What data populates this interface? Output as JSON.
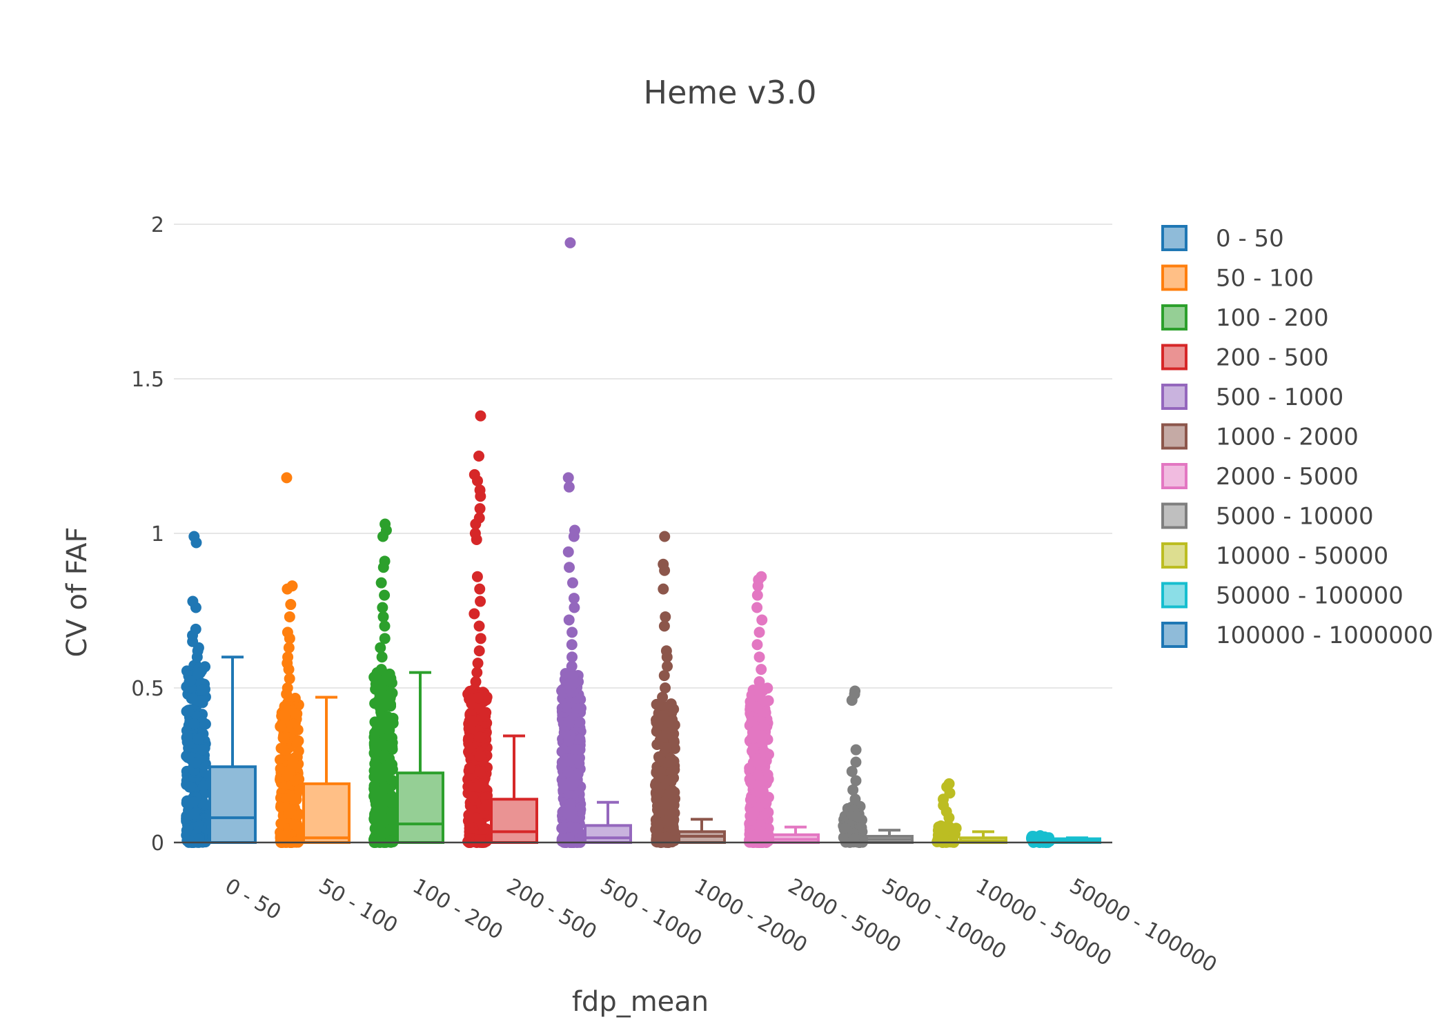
{
  "chart_data": {
    "type": "box",
    "title": "Heme v3.0",
    "xlabel": "fdp_mean",
    "ylabel": "CV of FAF",
    "ylim": [
      0,
      2.05
    ],
    "yticks": [
      0,
      0.5,
      1,
      1.5,
      2
    ],
    "ytick_labels": [
      "0",
      "0.5",
      "1",
      "1.5",
      "2"
    ],
    "grid": true,
    "legend_position": "right",
    "categories": [
      "0 - 50",
      "50 - 100",
      "100 - 200",
      "200 - 500",
      "500 - 1000",
      "1000 - 2000",
      "2000 - 5000",
      "5000 - 10000",
      "10000 - 50000",
      "50000 - 100000"
    ],
    "series": [
      {
        "name": "0 - 50",
        "color": "#1f77b4",
        "box": {
          "q1": 0,
          "median": 0.08,
          "q3": 0.245,
          "whisker_low": 0,
          "whisker_high": 0.6
        },
        "points_range": [
          0,
          0.58
        ],
        "outliers": [
          0.6,
          0.62,
          0.63,
          0.65,
          0.67,
          0.69,
          0.76,
          0.78,
          0.97,
          0.99
        ]
      },
      {
        "name": "50 - 100",
        "color": "#ff7f0e",
        "box": {
          "q1": 0,
          "median": 0.015,
          "q3": 0.19,
          "whisker_low": 0,
          "whisker_high": 0.47
        },
        "points_range": [
          0,
          0.47
        ],
        "outliers": [
          0.48,
          0.5,
          0.53,
          0.56,
          0.58,
          0.6,
          0.63,
          0.66,
          0.68,
          0.73,
          0.77,
          0.82,
          0.83,
          1.18
        ]
      },
      {
        "name": "100 - 200",
        "color": "#2ca02c",
        "box": {
          "q1": 0,
          "median": 0.06,
          "q3": 0.225,
          "whisker_low": 0,
          "whisker_high": 0.55
        },
        "points_range": [
          0,
          0.55
        ],
        "outliers": [
          0.56,
          0.6,
          0.63,
          0.66,
          0.7,
          0.73,
          0.76,
          0.8,
          0.84,
          0.89,
          0.91,
          0.99,
          1.01,
          1.03
        ]
      },
      {
        "name": "200 - 500",
        "color": "#d62728",
        "box": {
          "q1": 0,
          "median": 0.035,
          "q3": 0.14,
          "whisker_low": 0,
          "whisker_high": 0.345
        },
        "points_range": [
          0,
          0.5
        ],
        "outliers": [
          0.52,
          0.55,
          0.58,
          0.62,
          0.66,
          0.7,
          0.74,
          0.78,
          0.82,
          0.86,
          0.98,
          1.0,
          1.03,
          1.05,
          1.08,
          1.12,
          1.14,
          1.17,
          1.19,
          1.25,
          1.38
        ]
      },
      {
        "name": "500 - 1000",
        "color": "#9467bd",
        "box": {
          "q1": 0,
          "median": 0.015,
          "q3": 0.055,
          "whisker_low": 0,
          "whisker_high": 0.13
        },
        "points_range": [
          0,
          0.55
        ],
        "outliers": [
          0.57,
          0.6,
          0.64,
          0.68,
          0.72,
          0.76,
          0.79,
          0.84,
          0.89,
          0.94,
          0.99,
          1.01,
          1.15,
          1.18,
          1.94
        ]
      },
      {
        "name": "1000 - 2000",
        "color": "#8c564b",
        "box": {
          "q1": 0,
          "median": 0.02,
          "q3": 0.035,
          "whisker_low": 0,
          "whisker_high": 0.075
        },
        "points_range": [
          0,
          0.45
        ],
        "outliers": [
          0.47,
          0.5,
          0.54,
          0.57,
          0.6,
          0.62,
          0.7,
          0.73,
          0.82,
          0.88,
          0.9,
          0.99
        ]
      },
      {
        "name": "2000 - 5000",
        "color": "#e377c2",
        "box": {
          "q1": 0,
          "median": 0.01,
          "q3": 0.025,
          "whisker_low": 0,
          "whisker_high": 0.05
        },
        "points_range": [
          0,
          0.5
        ],
        "outliers": [
          0.52,
          0.56,
          0.6,
          0.64,
          0.68,
          0.72,
          0.76,
          0.8,
          0.83,
          0.85,
          0.86
        ]
      },
      {
        "name": "5000 - 10000",
        "color": "#7f7f7f",
        "box": {
          "q1": 0,
          "median": 0.01,
          "q3": 0.02,
          "whisker_low": 0,
          "whisker_high": 0.04
        },
        "points_range": [
          0,
          0.12
        ],
        "outliers": [
          0.14,
          0.17,
          0.2,
          0.23,
          0.26,
          0.3,
          0.46,
          0.48,
          0.49
        ]
      },
      {
        "name": "10000 - 50000",
        "color": "#bcbd22",
        "box": {
          "q1": 0,
          "median": 0.005,
          "q3": 0.015,
          "whisker_low": 0,
          "whisker_high": 0.035
        },
        "points_range": [
          0,
          0.06
        ],
        "outliers": [
          0.08,
          0.1,
          0.12,
          0.14,
          0.16,
          0.18,
          0.19
        ]
      },
      {
        "name": "50000 - 100000",
        "color": "#17becf",
        "box": {
          "q1": 0,
          "median": 0.005,
          "q3": 0.012,
          "whisker_low": 0,
          "whisker_high": 0.015
        },
        "points_range": [
          0,
          0.02
        ],
        "outliers": [
          0.022
        ]
      }
    ],
    "legend_entries": [
      {
        "label": "0 - 50",
        "color": "#1f77b4"
      },
      {
        "label": "50 - 100",
        "color": "#ff7f0e"
      },
      {
        "label": "100 - 200",
        "color": "#2ca02c"
      },
      {
        "label": "200 - 500",
        "color": "#d62728"
      },
      {
        "label": "500 - 1000",
        "color": "#9467bd"
      },
      {
        "label": "1000 - 2000",
        "color": "#8c564b"
      },
      {
        "label": "2000 - 5000",
        "color": "#e377c2"
      },
      {
        "label": "5000 - 10000",
        "color": "#7f7f7f"
      },
      {
        "label": "10000 - 50000",
        "color": "#bcbd22"
      },
      {
        "label": "50000 - 100000",
        "color": "#17becf"
      },
      {
        "label": "100000 - 1000000",
        "color": "#1f77b4"
      }
    ]
  }
}
